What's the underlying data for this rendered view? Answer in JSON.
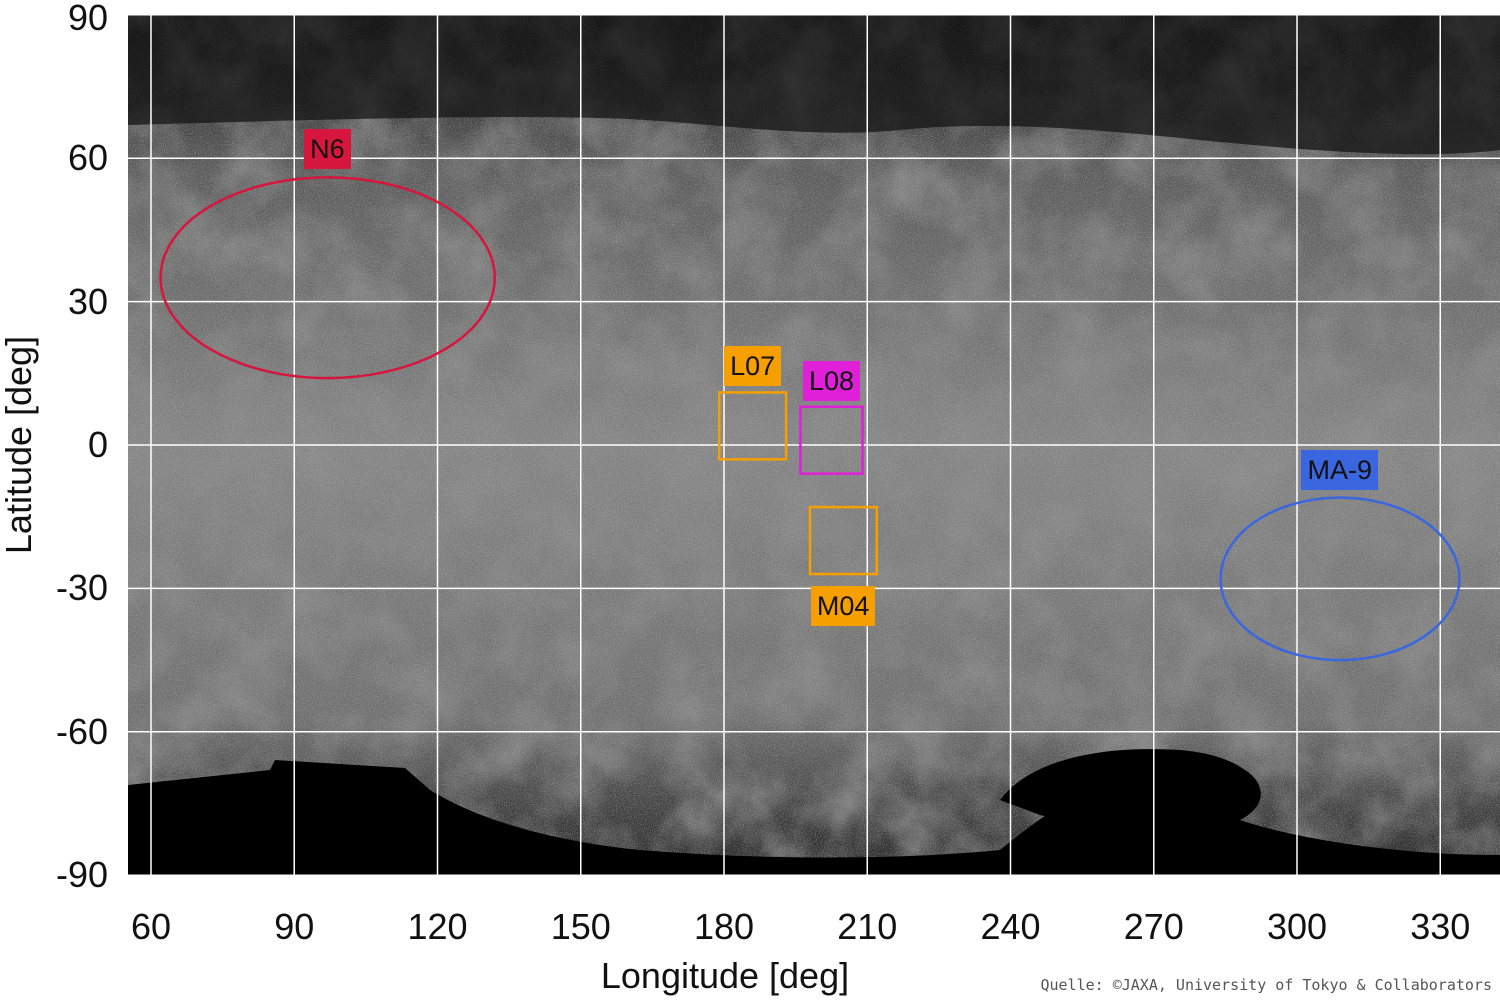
{
  "map": {
    "x_axis_label": "Longitude [deg]",
    "y_axis_label": "Latitude [deg]",
    "x_ticks": [
      "60",
      "90",
      "120",
      "150",
      "180",
      "210",
      "240",
      "270",
      "300",
      "330"
    ],
    "y_ticks": [
      "90",
      "60",
      "30",
      "0",
      "-30",
      "-60",
      "-90"
    ],
    "x_range_deg": [
      55,
      343
    ],
    "y_range_deg": [
      -90,
      90
    ],
    "grid": true,
    "credit": "Quelle: ©JAXA, University of Tokyo & Collaborators"
  },
  "regions": [
    {
      "id": "N6",
      "label": "N6",
      "shape": "ellipse",
      "color": "#d6163c",
      "label_bg": "#d6163c",
      "label_text_color": "#111111",
      "center_lon": 97,
      "center_lat": 35,
      "span_lon": 70,
      "span_lat": 42
    },
    {
      "id": "L07",
      "label": "L07",
      "shape": "rect",
      "color": "#f5a000",
      "label_bg": "#f5a000",
      "label_text_color": "#111111",
      "lon_min": 179,
      "lon_max": 193,
      "lat_min": -3,
      "lat_max": 11
    },
    {
      "id": "L08",
      "label": "L08",
      "shape": "rect",
      "color": "#e020d8",
      "label_bg": "#e020d8",
      "label_text_color": "#111111",
      "lon_min": 196,
      "lon_max": 209,
      "lat_min": -6,
      "lat_max": 8
    },
    {
      "id": "M04",
      "label": "M04",
      "shape": "rect",
      "color": "#f5a000",
      "label_bg": "#f5a000",
      "label_text_color": "#111111",
      "lon_min": 198,
      "lon_max": 212,
      "lat_min": -27,
      "lat_max": -13
    },
    {
      "id": "MA-9",
      "label": "MA-9",
      "shape": "ellipse",
      "color": "#3a66e0",
      "label_bg": "#3a66e0",
      "label_text_color": "#111111",
      "center_lon": 309,
      "center_lat": -28,
      "span_lon": 50,
      "span_lat": 34
    }
  ]
}
